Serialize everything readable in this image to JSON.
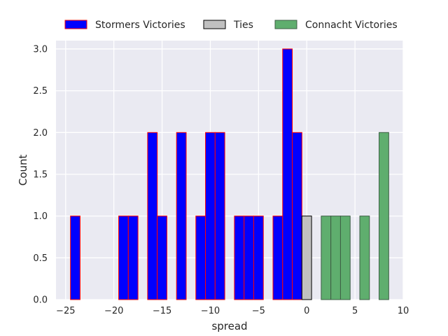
{
  "chart_data": {
    "type": "bar",
    "xlabel": "spread",
    "ylabel": "Count",
    "xlim": [
      -26,
      10
    ],
    "ylim": [
      0,
      3.1
    ],
    "xticks": [
      -25,
      -20,
      -15,
      -10,
      -5,
      0,
      5,
      10
    ],
    "xtick_labels": [
      "−25",
      "−20",
      "−15",
      "−10",
      "−5",
      "0",
      "5",
      "10"
    ],
    "yticks": [
      0,
      0.5,
      1,
      1.5,
      2,
      2.5,
      3
    ],
    "ytick_labels": [
      "0.0",
      "0.5",
      "1.0",
      "1.5",
      "2.0",
      "2.5",
      "3.0"
    ],
    "grid": true,
    "legend_position": "top",
    "bar_width": 1,
    "series": [
      {
        "name": "Stormers Victories",
        "fill": "#0000ff",
        "edge": "#ff0000",
        "bars": [
          {
            "x": -24,
            "count": 1
          },
          {
            "x": -19,
            "count": 1
          },
          {
            "x": -18,
            "count": 1
          },
          {
            "x": -16,
            "count": 2
          },
          {
            "x": -15,
            "count": 1
          },
          {
            "x": -13,
            "count": 2
          },
          {
            "x": -11,
            "count": 1
          },
          {
            "x": -10,
            "count": 2
          },
          {
            "x": -9,
            "count": 2
          },
          {
            "x": -7,
            "count": 1
          },
          {
            "x": -6,
            "count": 1
          },
          {
            "x": -5,
            "count": 1
          },
          {
            "x": -3,
            "count": 1
          },
          {
            "x": -2,
            "count": 3
          },
          {
            "x": -1,
            "count": 2
          }
        ]
      },
      {
        "name": "Ties",
        "fill": "#c0c0c0",
        "edge": "#000000",
        "bars": [
          {
            "x": 0,
            "count": 1
          }
        ]
      },
      {
        "name": "Connacht Victories",
        "fill": "#5fae6e",
        "edge": "#3c5e44",
        "bars": [
          {
            "x": 2,
            "count": 1
          },
          {
            "x": 3,
            "count": 1
          },
          {
            "x": 4,
            "count": 1
          },
          {
            "x": 6,
            "count": 1
          },
          {
            "x": 8,
            "count": 2
          }
        ]
      }
    ]
  }
}
